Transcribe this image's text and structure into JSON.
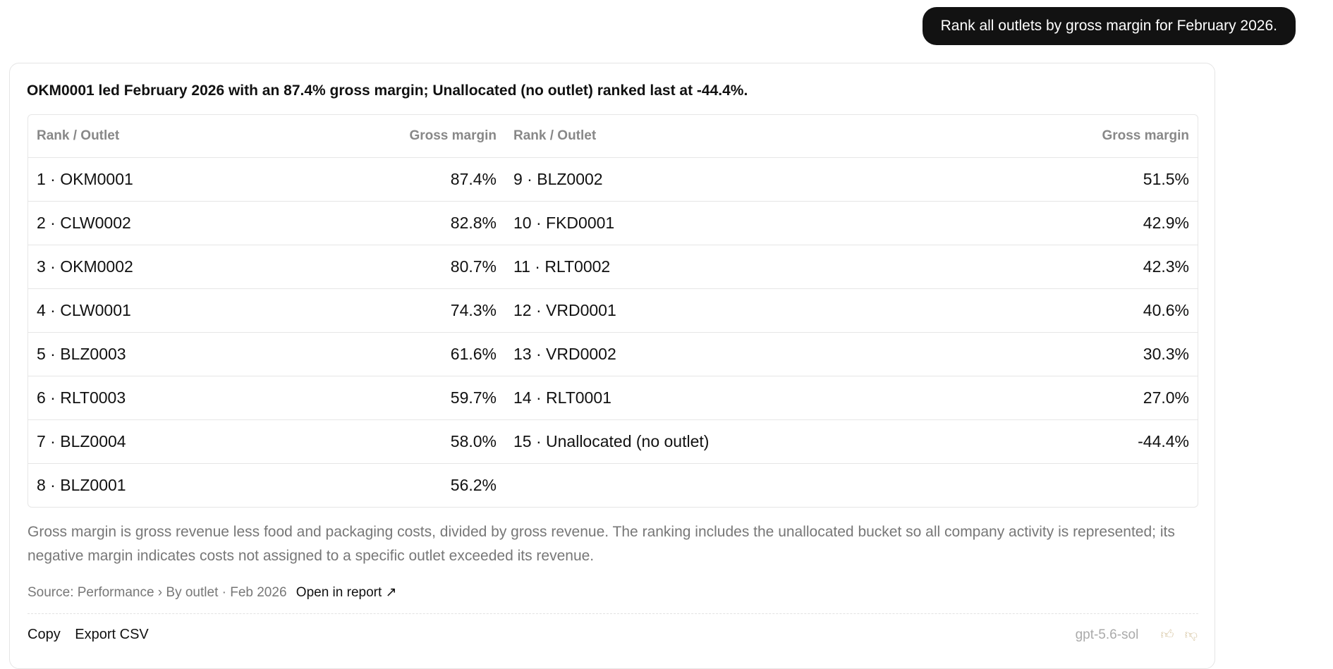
{
  "user_message": "Rank all outlets by gross margin for February 2026.",
  "answer": {
    "headline": "OKM0001 led February 2026 with an 87.4% gross margin; Unallocated (no outlet) ranked last at -44.4%.",
    "table": {
      "headers": [
        "Rank / Outlet",
        "Gross margin",
        "Rank / Outlet",
        "Gross margin"
      ],
      "rows": [
        {
          "left_outlet": "1 · OKM0001",
          "left_margin": "87.4%",
          "right_outlet": "9 · BLZ0002",
          "right_margin": "51.5%"
        },
        {
          "left_outlet": "2 · CLW0002",
          "left_margin": "82.8%",
          "right_outlet": "10 · FKD0001",
          "right_margin": "42.9%"
        },
        {
          "left_outlet": "3 · OKM0002",
          "left_margin": "80.7%",
          "right_outlet": "11 · RLT0002",
          "right_margin": "42.3%"
        },
        {
          "left_outlet": "4 · CLW0001",
          "left_margin": "74.3%",
          "right_outlet": "12 · VRD0001",
          "right_margin": "40.6%"
        },
        {
          "left_outlet": "5 · BLZ0003",
          "left_margin": "61.6%",
          "right_outlet": "13 · VRD0002",
          "right_margin": "30.3%"
        },
        {
          "left_outlet": "6 · RLT0003",
          "left_margin": "59.7%",
          "right_outlet": "14 · RLT0001",
          "right_margin": "27.0%"
        },
        {
          "left_outlet": "7 · BLZ0004",
          "left_margin": "58.0%",
          "right_outlet": "15 · Unallocated (no outlet)",
          "right_margin": "-44.4%"
        },
        {
          "left_outlet": "8 · BLZ0001",
          "left_margin": "56.2%",
          "right_outlet": "",
          "right_margin": ""
        }
      ]
    },
    "explanation": "Gross margin is gross revenue less food and packaging costs, divided by gross revenue. The ranking includes the unallocated bucket so all company activity is represented; its negative margin indicates costs not assigned to a specific outlet exceeded its revenue.",
    "source": "Source: Performance › By outlet · Feb 2026",
    "open_link": "Open in report ↗"
  },
  "actions": {
    "copy": "Copy",
    "export": "Export CSV"
  },
  "model_name": "gpt-5.6-sol",
  "feedback": {
    "up_icon": "thumbs-up-icon",
    "down_icon": "thumbs-down-icon"
  },
  "colors": {
    "user_bubble_bg": "#121212",
    "muted_text": "#777777",
    "border": "#e6e6e6"
  }
}
